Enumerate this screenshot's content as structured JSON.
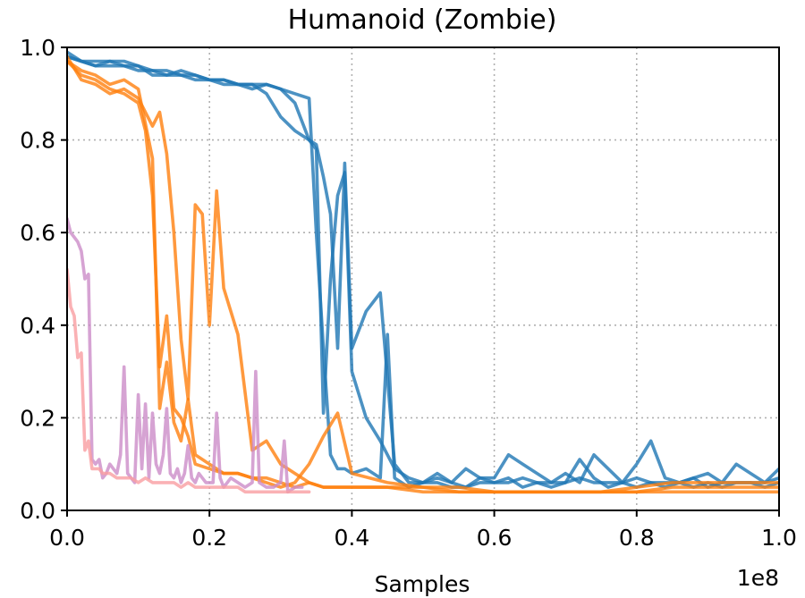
{
  "chart_data": {
    "type": "line",
    "title": "Humanoid (Zombie)",
    "xlabel": "Samples",
    "ylabel": "",
    "x_offset_label": "1e8",
    "xlim": [
      0,
      1.0
    ],
    "ylim": [
      0,
      1.0
    ],
    "xticks": [
      0.0,
      0.2,
      0.4,
      0.6,
      0.8,
      1.0
    ],
    "xtick_labels": [
      "0.0",
      "0.2",
      "0.4",
      "0.6",
      "0.8",
      "1.0"
    ],
    "yticks": [
      0.0,
      0.2,
      0.4,
      0.6,
      0.8,
      1.0
    ],
    "ytick_labels": [
      "0.0",
      "0.2",
      "0.4",
      "0.6",
      "0.8",
      "1.0"
    ],
    "grid": true,
    "series": [
      {
        "color": "#1f77b4",
        "x": [
          0,
          0.02,
          0.04,
          0.06,
          0.08,
          0.1,
          0.12,
          0.14,
          0.16,
          0.18,
          0.2,
          0.22,
          0.24,
          0.26,
          0.28,
          0.3,
          0.32,
          0.34,
          0.35,
          0.36,
          0.37,
          0.38,
          0.39,
          0.4,
          0.42,
          0.44,
          0.46,
          0.48,
          0.5,
          0.52,
          0.54,
          0.56,
          0.58,
          0.6,
          0.62,
          0.64,
          0.66,
          0.68,
          0.7,
          0.72,
          0.74,
          0.76,
          0.78,
          0.8,
          0.82,
          0.84,
          0.86,
          0.88,
          0.9,
          0.92,
          0.94,
          0.96,
          0.98,
          1.0
        ],
        "y": [
          0.99,
          0.97,
          0.97,
          0.97,
          0.96,
          0.96,
          0.95,
          0.95,
          0.94,
          0.94,
          0.93,
          0.93,
          0.92,
          0.92,
          0.9,
          0.85,
          0.82,
          0.8,
          0.78,
          0.21,
          0.5,
          0.68,
          0.73,
          0.3,
          0.2,
          0.15,
          0.09,
          0.07,
          0.06,
          0.06,
          0.05,
          0.05,
          0.06,
          0.06,
          0.07,
          0.05,
          0.06,
          0.05,
          0.06,
          0.11,
          0.07,
          0.05,
          0.06,
          0.05,
          0.06,
          0.05,
          0.06,
          0.05,
          0.06,
          0.05,
          0.06,
          0.06,
          0.05,
          0.06
        ]
      },
      {
        "color": "#1f77b4",
        "x": [
          0,
          0.02,
          0.04,
          0.06,
          0.08,
          0.1,
          0.12,
          0.14,
          0.16,
          0.18,
          0.2,
          0.22,
          0.24,
          0.26,
          0.28,
          0.3,
          0.32,
          0.34,
          0.35,
          0.36,
          0.37,
          0.38,
          0.39,
          0.4,
          0.42,
          0.44,
          0.46,
          0.48,
          0.5,
          0.52,
          0.54,
          0.56,
          0.58,
          0.6,
          0.62,
          0.64,
          0.66,
          0.68,
          0.7,
          0.72,
          0.74,
          0.76,
          0.78,
          0.8,
          0.82,
          0.84,
          0.86,
          0.88,
          0.9,
          0.92,
          0.94,
          0.96,
          0.98,
          1.0
        ],
        "y": [
          0.98,
          0.97,
          0.96,
          0.96,
          0.96,
          0.95,
          0.95,
          0.94,
          0.94,
          0.93,
          0.93,
          0.92,
          0.92,
          0.91,
          0.92,
          0.91,
          0.88,
          0.8,
          0.79,
          0.72,
          0.64,
          0.35,
          0.75,
          0.35,
          0.43,
          0.47,
          0.1,
          0.06,
          0.06,
          0.07,
          0.06,
          0.05,
          0.07,
          0.06,
          0.06,
          0.07,
          0.06,
          0.06,
          0.06,
          0.07,
          0.06,
          0.06,
          0.06,
          0.07,
          0.06,
          0.06,
          0.06,
          0.07,
          0.05,
          0.06,
          0.06,
          0.06,
          0.06,
          0.07
        ]
      },
      {
        "color": "#1f77b4",
        "x": [
          0,
          0.02,
          0.04,
          0.06,
          0.08,
          0.1,
          0.12,
          0.14,
          0.16,
          0.18,
          0.2,
          0.22,
          0.24,
          0.26,
          0.28,
          0.3,
          0.32,
          0.34,
          0.35,
          0.36,
          0.37,
          0.38,
          0.39,
          0.4,
          0.42,
          0.44,
          0.45,
          0.46,
          0.48,
          0.5,
          0.52,
          0.54,
          0.56,
          0.58,
          0.6,
          0.62,
          0.64,
          0.66,
          0.68,
          0.7,
          0.72,
          0.74,
          0.76,
          0.78,
          0.8,
          0.82,
          0.84,
          0.86,
          0.88,
          0.9,
          0.92,
          0.94,
          0.96,
          0.98,
          1.0
        ],
        "y": [
          0.98,
          0.97,
          0.96,
          0.97,
          0.97,
          0.96,
          0.94,
          0.94,
          0.95,
          0.94,
          0.93,
          0.93,
          0.92,
          0.92,
          0.92,
          0.91,
          0.9,
          0.89,
          0.6,
          0.35,
          0.12,
          0.09,
          0.09,
          0.08,
          0.09,
          0.07,
          0.38,
          0.07,
          0.05,
          0.06,
          0.08,
          0.06,
          0.09,
          0.07,
          0.07,
          0.12,
          0.1,
          0.08,
          0.06,
          0.08,
          0.06,
          0.12,
          0.09,
          0.06,
          0.1,
          0.15,
          0.07,
          0.06,
          0.07,
          0.08,
          0.06,
          0.1,
          0.08,
          0.06,
          0.09
        ]
      },
      {
        "color": "#ff7f0e",
        "x": [
          0,
          0.02,
          0.04,
          0.06,
          0.08,
          0.1,
          0.12,
          0.13,
          0.14,
          0.15,
          0.16,
          0.17,
          0.18,
          0.19,
          0.2,
          0.21,
          0.22,
          0.24,
          0.26,
          0.28,
          0.3,
          0.32,
          0.34,
          0.36,
          0.38,
          0.4,
          0.45,
          0.5,
          0.55,
          0.6,
          0.65,
          0.7,
          0.75,
          0.8,
          0.85,
          0.9,
          0.95,
          1.0
        ],
        "y": [
          0.98,
          0.93,
          0.92,
          0.9,
          0.91,
          0.89,
          0.83,
          0.86,
          0.77,
          0.6,
          0.37,
          0.24,
          0.66,
          0.64,
          0.4,
          0.69,
          0.48,
          0.38,
          0.13,
          0.15,
          0.1,
          0.08,
          0.06,
          0.05,
          0.05,
          0.05,
          0.05,
          0.05,
          0.04,
          0.04,
          0.04,
          0.04,
          0.04,
          0.04,
          0.04,
          0.04,
          0.04,
          0.04
        ]
      },
      {
        "color": "#ff7f0e",
        "x": [
          0,
          0.02,
          0.04,
          0.06,
          0.08,
          0.1,
          0.12,
          0.13,
          0.14,
          0.15,
          0.16,
          0.17,
          0.18,
          0.2,
          0.22,
          0.24,
          0.26,
          0.28,
          0.3,
          0.32,
          0.34,
          0.36,
          0.38,
          0.4,
          0.45,
          0.5,
          0.55,
          0.6,
          0.65,
          0.7,
          0.75,
          0.8,
          0.85,
          0.9,
          0.95,
          1.0
        ],
        "y": [
          0.97,
          0.95,
          0.94,
          0.92,
          0.93,
          0.91,
          0.76,
          0.22,
          0.32,
          0.19,
          0.15,
          0.24,
          0.12,
          0.1,
          0.08,
          0.08,
          0.07,
          0.06,
          0.05,
          0.06,
          0.1,
          0.16,
          0.21,
          0.08,
          0.06,
          0.05,
          0.05,
          0.04,
          0.04,
          0.04,
          0.04,
          0.04,
          0.05,
          0.05,
          0.05,
          0.05
        ]
      },
      {
        "color": "#ff7f0e",
        "x": [
          0,
          0.02,
          0.04,
          0.06,
          0.08,
          0.1,
          0.11,
          0.12,
          0.13,
          0.14,
          0.15,
          0.16,
          0.17,
          0.18,
          0.2,
          0.22,
          0.24,
          0.26,
          0.28,
          0.3,
          0.32,
          0.34,
          0.36,
          0.4,
          0.45,
          0.5,
          0.55,
          0.6,
          0.65,
          0.7,
          0.75,
          0.8,
          0.85,
          0.9,
          0.95,
          1.0
        ],
        "y": [
          0.97,
          0.94,
          0.93,
          0.91,
          0.9,
          0.88,
          0.82,
          0.68,
          0.31,
          0.42,
          0.22,
          0.2,
          0.16,
          0.1,
          0.09,
          0.08,
          0.08,
          0.07,
          0.07,
          0.06,
          0.05,
          0.06,
          0.05,
          0.05,
          0.05,
          0.04,
          0.04,
          0.04,
          0.04,
          0.04,
          0.04,
          0.05,
          0.06,
          0.06,
          0.06,
          0.06
        ]
      },
      {
        "color": "#cc8cc8",
        "x": [
          0,
          0.005,
          0.01,
          0.015,
          0.02,
          0.025,
          0.03,
          0.035,
          0.04,
          0.045,
          0.05,
          0.055,
          0.06,
          0.065,
          0.07,
          0.075,
          0.08,
          0.085,
          0.09,
          0.095,
          0.1,
          0.105,
          0.11,
          0.115,
          0.12,
          0.125,
          0.13,
          0.135,
          0.14,
          0.145,
          0.15,
          0.155,
          0.16,
          0.165,
          0.17,
          0.175,
          0.18,
          0.185,
          0.19,
          0.195,
          0.2,
          0.205,
          0.21,
          0.215,
          0.22,
          0.23,
          0.24,
          0.25,
          0.26,
          0.265,
          0.27,
          0.28,
          0.29,
          0.3,
          0.305,
          0.31,
          0.32,
          0.33
        ],
        "y": [
          0.63,
          0.6,
          0.59,
          0.58,
          0.56,
          0.5,
          0.51,
          0.11,
          0.1,
          0.11,
          0.07,
          0.08,
          0.1,
          0.09,
          0.08,
          0.12,
          0.31,
          0.08,
          0.07,
          0.06,
          0.25,
          0.09,
          0.23,
          0.07,
          0.21,
          0.1,
          0.08,
          0.12,
          0.22,
          0.08,
          0.07,
          0.09,
          0.06,
          0.08,
          0.14,
          0.07,
          0.06,
          0.08,
          0.07,
          0.06,
          0.06,
          0.06,
          0.21,
          0.07,
          0.05,
          0.07,
          0.06,
          0.05,
          0.06,
          0.3,
          0.06,
          0.05,
          0.05,
          0.06,
          0.15,
          0.04,
          0.05,
          0.05
        ]
      },
      {
        "color": "#f99ea1",
        "x": [
          0,
          0.005,
          0.01,
          0.015,
          0.02,
          0.025,
          0.03,
          0.035,
          0.04,
          0.045,
          0.05,
          0.06,
          0.07,
          0.08,
          0.09,
          0.1,
          0.11,
          0.12,
          0.13,
          0.14,
          0.15,
          0.16,
          0.17,
          0.18,
          0.19,
          0.2,
          0.21,
          0.22,
          0.23,
          0.24,
          0.25,
          0.26,
          0.27,
          0.28,
          0.29,
          0.3,
          0.31,
          0.32,
          0.33,
          0.34
        ],
        "y": [
          0.52,
          0.44,
          0.42,
          0.33,
          0.34,
          0.13,
          0.15,
          0.09,
          0.09,
          0.09,
          0.08,
          0.08,
          0.07,
          0.07,
          0.07,
          0.06,
          0.07,
          0.06,
          0.06,
          0.06,
          0.06,
          0.05,
          0.06,
          0.05,
          0.05,
          0.05,
          0.05,
          0.05,
          0.05,
          0.05,
          0.04,
          0.04,
          0.04,
          0.04,
          0.04,
          0.04,
          0.04,
          0.04,
          0.04,
          0.04
        ]
      }
    ]
  }
}
